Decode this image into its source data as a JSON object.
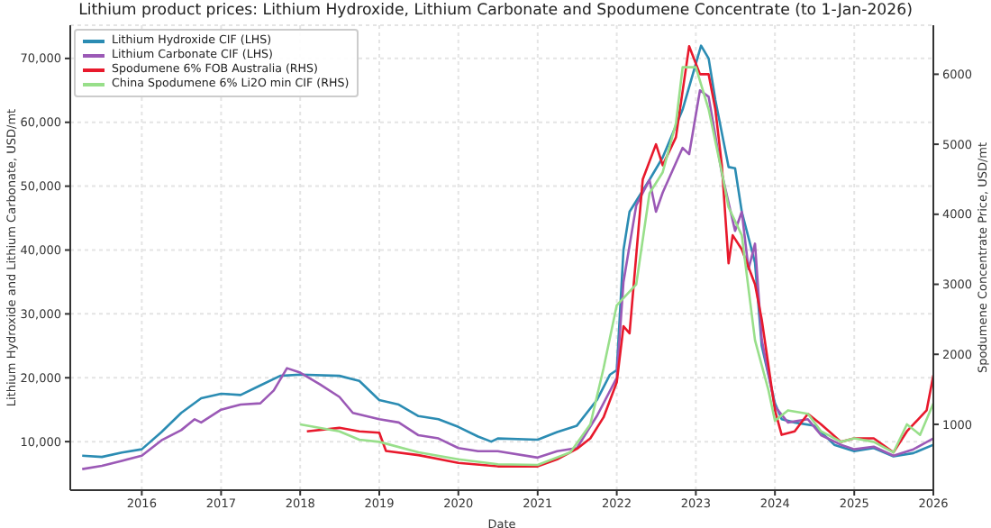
{
  "chart_data": {
    "type": "line",
    "title": "Lithium product prices: Lithium Hydroxide, Lithium Carbonate and Spodumene Concentrate (to 1-Jan-2026)",
    "xlabel": "Date",
    "ylabel": "Lithium Hydroxide and Lithium Carbonate, USD/mt",
    "y2label": "Spodumene Concentrate Price, USD/mt",
    "xlim": [
      "2015-02-05",
      "2026-01-01"
    ],
    "xticks": [
      {
        "value": "2016",
        "label": "2016"
      },
      {
        "value": "2017",
        "label": "2017"
      },
      {
        "value": "2018",
        "label": "2018"
      },
      {
        "value": "2019",
        "label": "2019"
      },
      {
        "value": "2020",
        "label": "2020"
      },
      {
        "value": "2021",
        "label": "2021"
      },
      {
        "value": "2022",
        "label": "2022"
      },
      {
        "value": "2023",
        "label": "2023"
      },
      {
        "value": "2024",
        "label": "2024"
      },
      {
        "value": "2025",
        "label": "2025"
      },
      {
        "value": "2026",
        "label": "2026"
      }
    ],
    "ylim": [
      2400,
      75200
    ],
    "yticks": [
      {
        "value": 10000,
        "label": "10,000"
      },
      {
        "value": 20000,
        "label": "20,000"
      },
      {
        "value": 30000,
        "label": "30,000"
      },
      {
        "value": 40000,
        "label": "40,000"
      },
      {
        "value": 50000,
        "label": "50,000"
      },
      {
        "value": 60000,
        "label": "60,000"
      },
      {
        "value": 70000,
        "label": "70,000"
      }
    ],
    "y2lim": [
      60,
      6700
    ],
    "y2ticks": [
      1000,
      2000,
      3000,
      4000,
      5000,
      6000
    ],
    "grid": true,
    "legend": "top left",
    "marker": "none",
    "line_style": "solid",
    "series": [
      {
        "name": "Lithium Hydroxide CIF (LHS)",
        "color": "#2b8cb3",
        "x": [
          "2015-04",
          "2015-07",
          "2015-10",
          "2016-01",
          "2016-04",
          "2016-07",
          "2016-10",
          "2017-01",
          "2017-04",
          "2017-07",
          "2017-10",
          "2018-01",
          "2018-07",
          "2018-10",
          "2019-01",
          "2019-04",
          "2019-07",
          "2019-10",
          "2020-01",
          "2020-04",
          "2020-06",
          "2020-07",
          "2021-01",
          "2021-04",
          "2021-07",
          "2021-10",
          "2021-12",
          "2022-01",
          "2022-02",
          "2022-03",
          "2022-06",
          "2022-08",
          "2022-11",
          "2023-01-25",
          "2023-03",
          "2023-04",
          "2023-06",
          "2023-07",
          "2023-08",
          "2023-10",
          "2023-11",
          "2024-01",
          "2024-02",
          "2024-04",
          "2024-07",
          "2024-10",
          "2025-01",
          "2025-04",
          "2025-07",
          "2025-10",
          "2026-01"
        ],
        "values": [
          7800,
          7600,
          8300,
          8800,
          11500,
          14500,
          16800,
          17500,
          17300,
          18800,
          20300,
          20500,
          20300,
          19500,
          16500,
          15800,
          14000,
          13500,
          12300,
          10800,
          10000,
          10500,
          10300,
          11500,
          12500,
          16500,
          20500,
          21200,
          40000,
          46000,
          51000,
          54500,
          62000,
          72000,
          70000,
          63500,
          53000,
          52800,
          46000,
          38000,
          25000,
          16000,
          13500,
          13000,
          12500,
          9500,
          8500,
          9000,
          7700,
          8200,
          9500
        ]
      },
      {
        "name": "Lithium Carbonate CIF (LHS)",
        "color": "#9b59b6",
        "x": [
          "2015-04",
          "2015-07",
          "2015-10",
          "2016-01",
          "2016-04",
          "2016-07",
          "2016-09",
          "2016-10",
          "2017-01",
          "2017-04",
          "2017-07",
          "2017-09",
          "2017-11",
          "2018-01",
          "2018-04",
          "2018-07",
          "2018-09",
          "2019-01",
          "2019-04",
          "2019-07",
          "2019-10",
          "2020-01",
          "2020-04",
          "2020-07",
          "2021-01",
          "2021-04",
          "2021-07",
          "2021-10",
          "2022-01",
          "2022-02",
          "2022-04",
          "2022-06",
          "2022-07",
          "2022-08",
          "2022-11",
          "2022-12",
          "2023-01-20",
          "2023-03",
          "2023-05",
          "2023-07",
          "2023-08",
          "2023-09",
          "2023-10",
          "2023-11",
          "2024-01",
          "2024-03",
          "2024-06",
          "2024-08",
          "2024-11",
          "2025-01",
          "2025-04",
          "2025-07",
          "2025-10",
          "2026-01"
        ],
        "values": [
          5700,
          6200,
          7000,
          7800,
          10200,
          11800,
          13500,
          13000,
          15000,
          15800,
          16000,
          18000,
          21500,
          20800,
          19000,
          17000,
          14500,
          13500,
          13000,
          11000,
          10500,
          9000,
          8500,
          8500,
          7500,
          8500,
          9000,
          14000,
          20000,
          35000,
          47000,
          51000,
          46000,
          49000,
          56000,
          55000,
          65000,
          64000,
          52000,
          43000,
          46000,
          37000,
          41000,
          26000,
          15500,
          13000,
          13500,
          11000,
          9500,
          8800,
          9200,
          7800,
          8800,
          10500
        ]
      },
      {
        "name": "Spodumene 6% FOB Australia (RHS)",
        "color": "#e8192c",
        "axis": "y2",
        "x": [
          "2018-02",
          "2018-07",
          "2018-10",
          "2019-01",
          "2019-02",
          "2019-07",
          "2020-01",
          "2020-07",
          "2021-01",
          "2021-04",
          "2021-07",
          "2021-09",
          "2021-11",
          "2022-01",
          "2022-02",
          "2022-03",
          "2022-05",
          "2022-07",
          "2022-08",
          "2022-10",
          "2022-12",
          "2023-01-20",
          "2023-03",
          "2023-04",
          "2023-05",
          "2023-06",
          "2023-06-20",
          "2023-08",
          "2023-10",
          "2023-11",
          "2024-01",
          "2024-02",
          "2024-04",
          "2024-06",
          "2024-08",
          "2024-11",
          "2025-01",
          "2025-04",
          "2025-07",
          "2025-09",
          "2025-11",
          "2025-12",
          "2026-01"
        ],
        "values": [
          900,
          950,
          900,
          880,
          620,
          560,
          450,
          400,
          400,
          500,
          650,
          800,
          1100,
          1600,
          2400,
          2300,
          4500,
          5000,
          4700,
          5100,
          6400,
          6000,
          6000,
          5500,
          4700,
          3300,
          3700,
          3500,
          3000,
          2500,
          1200,
          850,
          900,
          1150,
          1000,
          750,
          800,
          800,
          600,
          900,
          1100,
          1200,
          1700
        ]
      },
      {
        "name": "China Spodumene 6% Li2O min CIF (RHS)",
        "color": "#98df8a",
        "axis": "y2",
        "x": [
          "2018-01",
          "2018-07",
          "2018-10",
          "2019-01",
          "2019-07",
          "2020-01",
          "2020-07",
          "2021-01",
          "2021-06",
          "2021-09",
          "2021-11",
          "2022-01",
          "2022-04",
          "2022-06",
          "2022-08",
          "2022-10",
          "2022-11",
          "2023-01",
          "2023-03",
          "2023-05",
          "2023-06",
          "2023-08",
          "2023-10",
          "2023-12",
          "2024-01",
          "2024-03",
          "2024-06",
          "2024-08",
          "2024-11",
          "2025-01",
          "2025-04",
          "2025-07",
          "2025-09",
          "2025-11",
          "2026-01"
        ],
        "values": [
          1000,
          900,
          780,
          750,
          600,
          500,
          430,
          420,
          600,
          1000,
          1800,
          2700,
          3000,
          4300,
          4600,
          5300,
          6100,
          6100,
          5500,
          4600,
          4100,
          3700,
          2200,
          1500,
          1050,
          1200,
          1150,
          900,
          750,
          800,
          750,
          600,
          1000,
          850,
          1300
        ]
      }
    ]
  }
}
